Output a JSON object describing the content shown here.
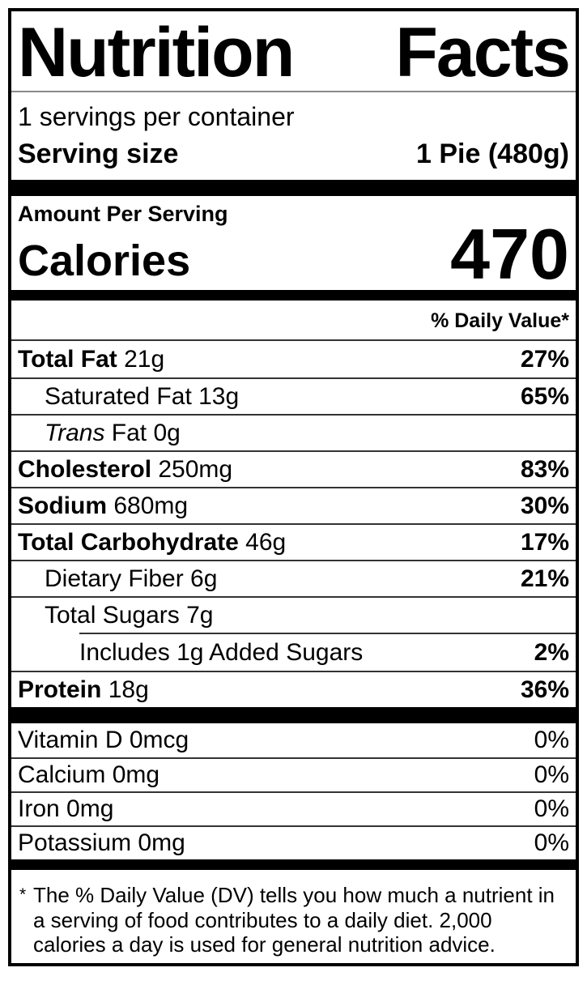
{
  "label": {
    "title": "Nutrition Facts",
    "servings_per_container": "1 servings per container",
    "serving_size_label": "Serving size",
    "serving_size_value": "1 Pie (480g)",
    "amount_per_serving": "Amount Per Serving",
    "calories_label": "Calories",
    "calories_value": "470",
    "daily_value_header": "% Daily Value*",
    "nutrients": [
      {
        "name": "Total Fat",
        "amount": "21g",
        "dv": "27%",
        "bold": true,
        "indent": 0
      },
      {
        "name": "Saturated Fat",
        "amount": "13g",
        "dv": "65%",
        "bold": false,
        "indent": 1
      },
      {
        "italic_prefix": "Trans",
        "name": "Fat",
        "amount": "0g",
        "dv": "",
        "bold": false,
        "indent": 1
      },
      {
        "name": "Cholesterol",
        "amount": "250mg",
        "dv": "83%",
        "bold": true,
        "indent": 0
      },
      {
        "name": "Sodium",
        "amount": "680mg",
        "dv": "30%",
        "bold": true,
        "indent": 0
      },
      {
        "name": "Total Carbohydrate",
        "amount": "46g",
        "dv": "17%",
        "bold": true,
        "indent": 0
      },
      {
        "name": "Dietary Fiber",
        "amount": "6g",
        "dv": "21%",
        "bold": false,
        "indent": 1
      },
      {
        "name": "Total Sugars",
        "amount": "7g",
        "dv": "",
        "bold": false,
        "indent": 1
      },
      {
        "name": "Includes 1g Added Sugars",
        "amount": "",
        "dv": "2%",
        "bold": false,
        "indent": 2,
        "partial_rule_above": true
      },
      {
        "name": "Protein",
        "amount": "18g",
        "dv": "36%",
        "bold": true,
        "indent": 0
      }
    ],
    "micronutrients": [
      {
        "name": "Vitamin D",
        "amount": "0mcg",
        "dv": "0%"
      },
      {
        "name": "Calcium",
        "amount": "0mg",
        "dv": "0%"
      },
      {
        "name": "Iron",
        "amount": "0mg",
        "dv": "0%"
      },
      {
        "name": "Potassium",
        "amount": "0mg",
        "dv": "0%"
      }
    ],
    "footnote_marker": "*",
    "footnote": "The % Daily Value (DV) tells you how much a nutrient in a serving of food contributes to a daily diet. 2,000 calories a day is used for general nutrition advice."
  },
  "colors": {
    "text": "#000000",
    "background": "#ffffff",
    "border": "#000000",
    "rule": "#333333"
  }
}
